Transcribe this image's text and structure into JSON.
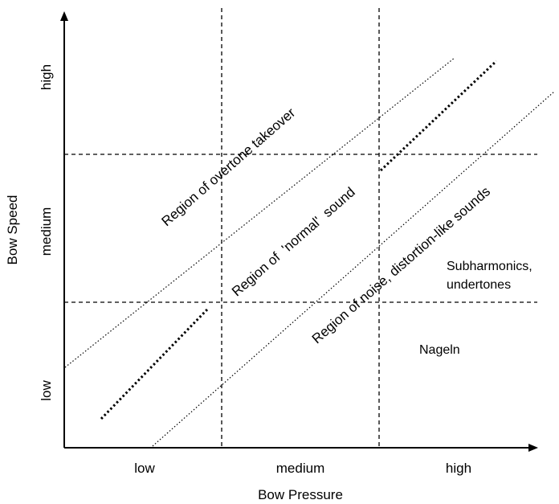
{
  "axes": {
    "x_title": "Bow Pressure",
    "y_title": "Bow Speed",
    "x_ticks": [
      "low",
      "medium",
      "high"
    ],
    "y_ticks": [
      "low",
      "medium",
      "high"
    ]
  },
  "regions": {
    "overtone": "Region of overtone takeover",
    "normal": "Region of  'normal'  sound",
    "noise": "Region of noise, distortion-like sounds",
    "subharmonics_line1": "Subharmonics,",
    "subharmonics_line2": "undertones",
    "nageln": "Nageln"
  },
  "colors": {
    "ink": "#000000",
    "background": "#ffffff"
  }
}
